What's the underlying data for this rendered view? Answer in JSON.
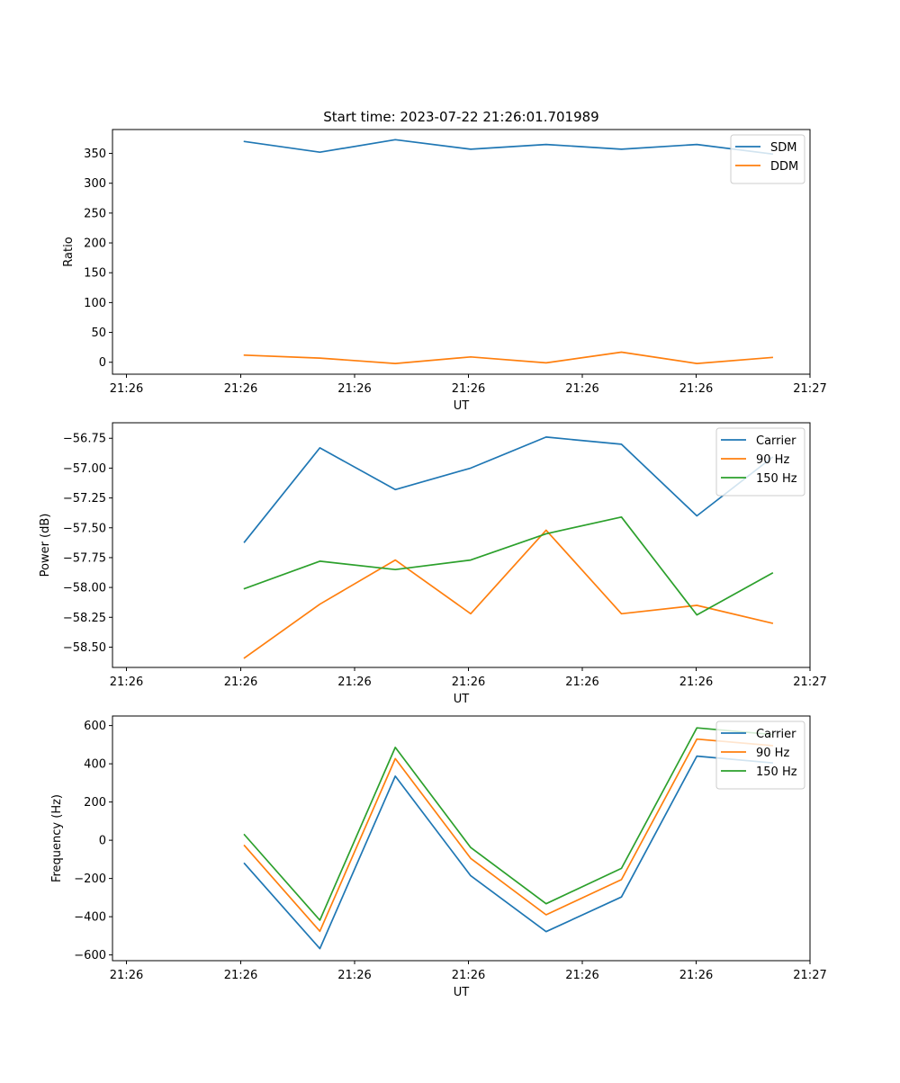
{
  "chart_data": [
    {
      "type": "line",
      "title": "Start time: 2023-07-22 21:26:01.701989",
      "xlabel": "UT",
      "ylabel": "Ratio",
      "x_ticks": [
        "21:26",
        "21:26",
        "21:26",
        "21:26",
        "21:26",
        "21:26",
        "21:27"
      ],
      "x": [
        1,
        2,
        3,
        4,
        5,
        6,
        7,
        8
      ],
      "xlim": [
        -0.75,
        8.5
      ],
      "ylim": [
        -20,
        390
      ],
      "y_ticks": [
        0,
        50,
        100,
        150,
        200,
        250,
        300,
        350
      ],
      "y_tick_labels": [
        "0",
        "50",
        "100",
        "150",
        "200",
        "250",
        "300",
        "350"
      ],
      "legend": "top-right",
      "series": [
        {
          "name": "SDM",
          "color": "#1f77b4",
          "values": [
            370,
            352,
            373,
            357,
            365,
            357,
            365,
            349
          ]
        },
        {
          "name": "DDM",
          "color": "#ff7f0e",
          "values": [
            12,
            7,
            -2,
            9,
            -1,
            17,
            -2,
            8
          ]
        }
      ]
    },
    {
      "type": "line",
      "title": "",
      "xlabel": "UT",
      "ylabel": "Power (dB)",
      "x_ticks": [
        "21:26",
        "21:26",
        "21:26",
        "21:26",
        "21:26",
        "21:26",
        "21:27"
      ],
      "x": [
        1,
        2,
        3,
        4,
        5,
        6,
        7,
        8
      ],
      "xlim": [
        -0.75,
        8.5
      ],
      "ylim": [
        -58.67,
        -56.62
      ],
      "y_ticks": [
        -56.75,
        -57.0,
        -57.25,
        -57.5,
        -57.75,
        -58.0,
        -58.25,
        -58.5
      ],
      "y_tick_labels": [
        "−56.75",
        "−57.00",
        "−57.25",
        "−57.50",
        "−57.75",
        "−58.00",
        "−58.25",
        "−58.50"
      ],
      "legend": "top-right",
      "series": [
        {
          "name": "Carrier",
          "color": "#1f77b4",
          "values": [
            -57.62,
            -56.83,
            -57.18,
            -57.0,
            -56.74,
            -56.8,
            -57.4,
            -56.91
          ]
        },
        {
          "name": "90 Hz",
          "color": "#ff7f0e",
          "values": [
            -58.59,
            -58.14,
            -57.77,
            -58.22,
            -57.52,
            -58.22,
            -58.15,
            -58.3
          ]
        },
        {
          "name": "150 Hz",
          "color": "#2ca02c",
          "values": [
            -58.01,
            -57.78,
            -57.85,
            -57.77,
            -57.55,
            -57.41,
            -58.23,
            -57.88
          ]
        }
      ]
    },
    {
      "type": "line",
      "title": "",
      "xlabel": "UT",
      "ylabel": "Frequency (Hz)",
      "x_ticks": [
        "21:26",
        "21:26",
        "21:26",
        "21:26",
        "21:26",
        "21:26",
        "21:27"
      ],
      "x": [
        1,
        2,
        3,
        4,
        5,
        6,
        7,
        8
      ],
      "xlim": [
        -0.75,
        8.5
      ],
      "ylim": [
        -630,
        650
      ],
      "y_ticks": [
        600,
        400,
        200,
        0,
        -200,
        -400,
        -600
      ],
      "y_tick_labels": [
        "600",
        "400",
        "200",
        "0",
        "−200",
        "−400",
        "−600"
      ],
      "legend": "top-right",
      "series": [
        {
          "name": "Carrier",
          "color": "#1f77b4",
          "values": [
            -122,
            -567,
            335,
            -186,
            -478,
            -297,
            440,
            405
          ]
        },
        {
          "name": "90 Hz",
          "color": "#ff7f0e",
          "values": [
            -28,
            -476,
            427,
            -95,
            -390,
            -206,
            529,
            495
          ]
        },
        {
          "name": "150 Hz",
          "color": "#2ca02c",
          "values": [
            29,
            -418,
            486,
            -38,
            -332,
            -147,
            588,
            553
          ]
        }
      ]
    }
  ]
}
